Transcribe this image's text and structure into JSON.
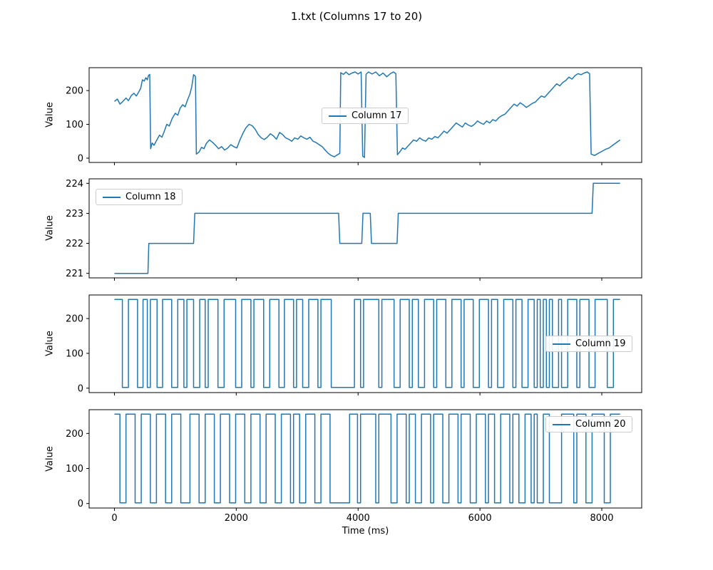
{
  "figure": {
    "title": "1.txt (Columns 17 to 20)",
    "xlabel": "Time (ms)",
    "line_color": "#1f77b4",
    "background": "#ffffff",
    "xlim": [
      -415,
      8655
    ],
    "xticks": [
      0,
      2000,
      4000,
      6000,
      8000
    ]
  },
  "chart_data": [
    {
      "type": "line",
      "name": "Column 17",
      "ylabel": "Value",
      "legend": {
        "label": "Column 17",
        "loc": "center"
      },
      "ylim": [
        -12.75,
        267.75
      ],
      "yticks": [
        0,
        100,
        200
      ],
      "points": [
        [
          0,
          168
        ],
        [
          50,
          175
        ],
        [
          90,
          160
        ],
        [
          140,
          168
        ],
        [
          190,
          178
        ],
        [
          230,
          170
        ],
        [
          280,
          186
        ],
        [
          320,
          192
        ],
        [
          360,
          184
        ],
        [
          400,
          196
        ],
        [
          430,
          206
        ],
        [
          460,
          232
        ],
        [
          490,
          228
        ],
        [
          515,
          238
        ],
        [
          540,
          232
        ],
        [
          560,
          245
        ],
        [
          580,
          248
        ],
        [
          595,
          28
        ],
        [
          620,
          45
        ],
        [
          650,
          38
        ],
        [
          700,
          55
        ],
        [
          740,
          68
        ],
        [
          780,
          62
        ],
        [
          820,
          80
        ],
        [
          860,
          100
        ],
        [
          900,
          95
        ],
        [
          950,
          118
        ],
        [
          1000,
          133
        ],
        [
          1040,
          127
        ],
        [
          1080,
          148
        ],
        [
          1120,
          158
        ],
        [
          1160,
          152
        ],
        [
          1200,
          172
        ],
        [
          1240,
          190
        ],
        [
          1270,
          212
        ],
        [
          1300,
          247
        ],
        [
          1330,
          242
        ],
        [
          1345,
          12
        ],
        [
          1390,
          18
        ],
        [
          1430,
          32
        ],
        [
          1470,
          28
        ],
        [
          1510,
          44
        ],
        [
          1560,
          54
        ],
        [
          1610,
          47
        ],
        [
          1660,
          38
        ],
        [
          1710,
          28
        ],
        [
          1760,
          34
        ],
        [
          1810,
          24
        ],
        [
          1860,
          30
        ],
        [
          1910,
          40
        ],
        [
          1960,
          34
        ],
        [
          2010,
          30
        ],
        [
          2060,
          54
        ],
        [
          2110,
          74
        ],
        [
          2160,
          90
        ],
        [
          2210,
          100
        ],
        [
          2260,
          96
        ],
        [
          2310,
          86
        ],
        [
          2360,
          70
        ],
        [
          2410,
          60
        ],
        [
          2460,
          55
        ],
        [
          2510,
          62
        ],
        [
          2560,
          72
        ],
        [
          2610,
          66
        ],
        [
          2660,
          56
        ],
        [
          2710,
          76
        ],
        [
          2760,
          70
        ],
        [
          2810,
          60
        ],
        [
          2860,
          56
        ],
        [
          2910,
          50
        ],
        [
          2960,
          60
        ],
        [
          3010,
          56
        ],
        [
          3060,
          66
        ],
        [
          3110,
          60
        ],
        [
          3160,
          56
        ],
        [
          3210,
          62
        ],
        [
          3260,
          50
        ],
        [
          3310,
          46
        ],
        [
          3360,
          40
        ],
        [
          3410,
          34
        ],
        [
          3460,
          24
        ],
        [
          3510,
          14
        ],
        [
          3560,
          8
        ],
        [
          3610,
          4
        ],
        [
          3660,
          10
        ],
        [
          3700,
          14
        ],
        [
          3715,
          253
        ],
        [
          3760,
          248
        ],
        [
          3800,
          255
        ],
        [
          3850,
          247
        ],
        [
          3900,
          252
        ],
        [
          3950,
          255
        ],
        [
          4000,
          249
        ],
        [
          4050,
          255
        ],
        [
          4075,
          6
        ],
        [
          4105,
          2
        ],
        [
          4130,
          248
        ],
        [
          4170,
          255
        ],
        [
          4230,
          249
        ],
        [
          4290,
          255
        ],
        [
          4350,
          244
        ],
        [
          4410,
          252
        ],
        [
          4470,
          241
        ],
        [
          4530,
          250
        ],
        [
          4580,
          255
        ],
        [
          4620,
          250
        ],
        [
          4645,
          10
        ],
        [
          4690,
          20
        ],
        [
          4730,
          30
        ],
        [
          4770,
          26
        ],
        [
          4810,
          34
        ],
        [
          4860,
          44
        ],
        [
          4910,
          54
        ],
        [
          4960,
          50
        ],
        [
          5010,
          60
        ],
        [
          5060,
          54
        ],
        [
          5110,
          50
        ],
        [
          5160,
          60
        ],
        [
          5210,
          56
        ],
        [
          5260,
          64
        ],
        [
          5310,
          60
        ],
        [
          5360,
          70
        ],
        [
          5410,
          80
        ],
        [
          5460,
          74
        ],
        [
          5510,
          84
        ],
        [
          5560,
          94
        ],
        [
          5610,
          104
        ],
        [
          5660,
          98
        ],
        [
          5710,
          92
        ],
        [
          5760,
          104
        ],
        [
          5810,
          98
        ],
        [
          5860,
          94
        ],
        [
          5910,
          100
        ],
        [
          5960,
          110
        ],
        [
          6010,
          104
        ],
        [
          6060,
          100
        ],
        [
          6110,
          110
        ],
        [
          6160,
          104
        ],
        [
          6210,
          114
        ],
        [
          6260,
          110
        ],
        [
          6310,
          120
        ],
        [
          6360,
          126
        ],
        [
          6410,
          130
        ],
        [
          6460,
          140
        ],
        [
          6510,
          150
        ],
        [
          6560,
          160
        ],
        [
          6610,
          154
        ],
        [
          6660,
          164
        ],
        [
          6710,
          158
        ],
        [
          6760,
          150
        ],
        [
          6810,
          156
        ],
        [
          6860,
          162
        ],
        [
          6910,
          166
        ],
        [
          6960,
          176
        ],
        [
          7010,
          184
        ],
        [
          7060,
          180
        ],
        [
          7110,
          190
        ],
        [
          7160,
          200
        ],
        [
          7210,
          210
        ],
        [
          7260,
          220
        ],
        [
          7310,
          214
        ],
        [
          7360,
          224
        ],
        [
          7410,
          230
        ],
        [
          7460,
          240
        ],
        [
          7510,
          234
        ],
        [
          7560,
          244
        ],
        [
          7610,
          250
        ],
        [
          7660,
          247
        ],
        [
          7710,
          252
        ],
        [
          7760,
          255
        ],
        [
          7800,
          250
        ],
        [
          7825,
          12
        ],
        [
          7880,
          8
        ],
        [
          7940,
          14
        ],
        [
          8000,
          20
        ],
        [
          8060,
          26
        ],
        [
          8120,
          30
        ],
        [
          8180,
          38
        ],
        [
          8240,
          46
        ],
        [
          8300,
          54
        ]
      ]
    },
    {
      "type": "line",
      "name": "Column 18",
      "ylabel": "Value",
      "legend": {
        "label": "Column 18",
        "loc": "upper left"
      },
      "ylim": [
        220.85,
        224.15
      ],
      "yticks": [
        221,
        222,
        223,
        224
      ],
      "points": [
        [
          0,
          221
        ],
        [
          550,
          221
        ],
        [
          565,
          222
        ],
        [
          1300,
          222
        ],
        [
          1320,
          223
        ],
        [
          3680,
          223
        ],
        [
          3700,
          222
        ],
        [
          4060,
          222
        ],
        [
          4080,
          223
        ],
        [
          4200,
          223
        ],
        [
          4220,
          222
        ],
        [
          4640,
          222
        ],
        [
          4660,
          223
        ],
        [
          7840,
          223
        ],
        [
          7860,
          224
        ],
        [
          8300,
          224
        ]
      ]
    },
    {
      "type": "square",
      "name": "Column 19",
      "ylabel": "Value",
      "legend": {
        "label": "Column 19",
        "loc": "center right"
      },
      "ylim": [
        -12.75,
        267.75
      ],
      "yticks": [
        0,
        100,
        200
      ],
      "high": 255,
      "low": 2,
      "t_start": 0,
      "t_end": 8300,
      "low_intervals": [
        [
          130,
          230
        ],
        [
          380,
          470
        ],
        [
          540,
          590
        ],
        [
          700,
          790
        ],
        [
          940,
          1040
        ],
        [
          1140,
          1190
        ],
        [
          1300,
          1400
        ],
        [
          1490,
          1540
        ],
        [
          1700,
          1800
        ],
        [
          1990,
          2090
        ],
        [
          2240,
          2290
        ],
        [
          2450,
          2550
        ],
        [
          2700,
          2790
        ],
        [
          2940,
          2990
        ],
        [
          3090,
          3190
        ],
        [
          3340,
          3390
        ],
        [
          3560,
          3940
        ],
        [
          4040,
          4090
        ],
        [
          4340,
          4390
        ],
        [
          4590,
          4690
        ],
        [
          4840,
          4890
        ],
        [
          4990,
          5090
        ],
        [
          5240,
          5290
        ],
        [
          5440,
          5540
        ],
        [
          5690,
          5740
        ],
        [
          5890,
          5990
        ],
        [
          6140,
          6190
        ],
        [
          6290,
          6390
        ],
        [
          6540,
          6590
        ],
        [
          6690,
          6790
        ],
        [
          6890,
          6940
        ],
        [
          6990,
          7040
        ],
        [
          7090,
          7140
        ],
        [
          7190,
          7290
        ],
        [
          7340,
          7440
        ],
        [
          7590,
          7640
        ],
        [
          7790,
          7890
        ],
        [
          8090,
          8190
        ]
      ]
    },
    {
      "type": "square",
      "name": "Column 20",
      "ylabel": "Value",
      "legend": {
        "label": "Column 20",
        "loc": "upper right"
      },
      "ylim": [
        -12.75,
        267.75
      ],
      "yticks": [
        0,
        100,
        200
      ],
      "high": 255,
      "low": 2,
      "t_start": 0,
      "t_end": 8300,
      "low_intervals": [
        [
          90,
          190
        ],
        [
          340,
          440
        ],
        [
          590,
          690
        ],
        [
          840,
          940
        ],
        [
          1090,
          1240
        ],
        [
          1390,
          1490
        ],
        [
          1640,
          1740
        ],
        [
          1890,
          1990
        ],
        [
          2140,
          2240
        ],
        [
          2390,
          2490
        ],
        [
          2640,
          2740
        ],
        [
          2890,
          2940
        ],
        [
          3040,
          3140
        ],
        [
          3290,
          3390
        ],
        [
          3540,
          3860
        ],
        [
          3990,
          4040
        ],
        [
          4290,
          4340
        ],
        [
          4540,
          4640
        ],
        [
          4790,
          4840
        ],
        [
          4940,
          5040
        ],
        [
          5190,
          5240
        ],
        [
          5390,
          5490
        ],
        [
          5640,
          5690
        ],
        [
          5840,
          5940
        ],
        [
          6090,
          6140
        ],
        [
          6240,
          6340
        ],
        [
          6490,
          6540
        ],
        [
          6640,
          6740
        ],
        [
          6840,
          6890
        ],
        [
          6940,
          7040
        ],
        [
          7140,
          7340
        ],
        [
          7540,
          7590
        ],
        [
          7740,
          7840
        ],
        [
          8040,
          8140
        ]
      ]
    }
  ]
}
